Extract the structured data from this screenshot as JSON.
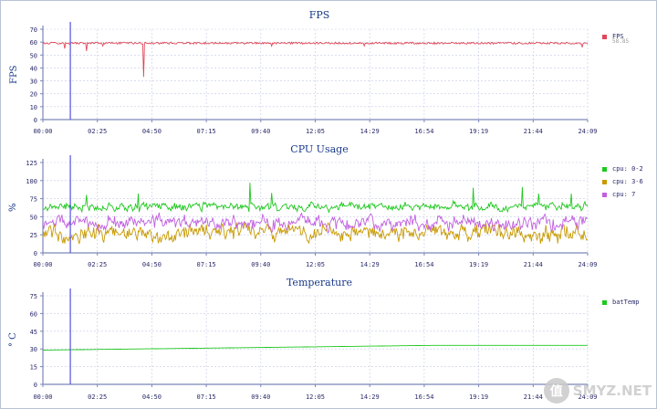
{
  "colors": {
    "axis": "#7b86b8",
    "grid": "#c3c9e6",
    "cursor": "#5050e0",
    "fps": "#e04858",
    "cpu_0_2": "#1ec81e",
    "cpu_3_6": "#c89a00",
    "cpu_7": "#c060e0",
    "bat_temp": "#1ec81e"
  },
  "time_ticks": [
    "00:00",
    "02:25",
    "04:50",
    "07:15",
    "09:40",
    "12:05",
    "14:29",
    "16:54",
    "19:19",
    "21:44",
    "24:09"
  ],
  "cursor_time": "01:13",
  "watermark": {
    "logo": "值",
    "text": "SMYZ.NET"
  },
  "chart_data": [
    {
      "id": "fps",
      "type": "line",
      "title": "FPS",
      "ylabel": "FPS",
      "ylim": [
        0,
        70
      ],
      "yticks": [
        0,
        10,
        20,
        30,
        40,
        50,
        60,
        70
      ],
      "series": [
        {
          "name": "FPS",
          "legend_value": "58.85",
          "color_key": "fps",
          "base": 59.5,
          "noise": 1.5,
          "seed": 11,
          "spikes": [
            [
              0.04,
              55
            ],
            [
              0.08,
              53
            ],
            [
              0.11,
              57
            ],
            [
              0.185,
              33
            ],
            [
              0.42,
              57
            ],
            [
              0.59,
              57
            ],
            [
              0.99,
              56
            ]
          ]
        }
      ]
    },
    {
      "id": "cpu",
      "type": "line",
      "title": "CPU Usage",
      "ylabel": "%",
      "ylim": [
        0,
        125
      ],
      "yticks": [
        0,
        25,
        50,
        75,
        100,
        125
      ],
      "series": [
        {
          "name": "cpu: 0-2",
          "color_key": "cpu_0_2",
          "base": 64,
          "noise": 7,
          "seed": 21,
          "spikes": [
            [
              0.08,
              80
            ],
            [
              0.175,
              82
            ],
            [
              0.38,
              97
            ],
            [
              0.42,
              83
            ],
            [
              0.79,
              90
            ],
            [
              0.88,
              91
            ],
            [
              0.91,
              82
            ],
            [
              0.97,
              82
            ]
          ]
        },
        {
          "name": "cpu: 3-6",
          "color_key": "cpu_3_6",
          "base": 28,
          "noise": 14,
          "seed": 33,
          "spikes": []
        },
        {
          "name": "cpu: 7",
          "color_key": "cpu_7",
          "base": 42,
          "noise": 12,
          "seed": 47,
          "spikes": []
        }
      ]
    },
    {
      "id": "temp",
      "type": "line",
      "title": "Temperature",
      "ylabel": "° C",
      "ylim": [
        0,
        75
      ],
      "yticks": [
        0,
        15,
        30,
        45,
        60,
        75
      ],
      "series": [
        {
          "name": "batTemp",
          "color_key": "bat_temp",
          "base": 29,
          "end": 33,
          "noise": 0,
          "seed": 5,
          "spikes": []
        }
      ]
    }
  ]
}
